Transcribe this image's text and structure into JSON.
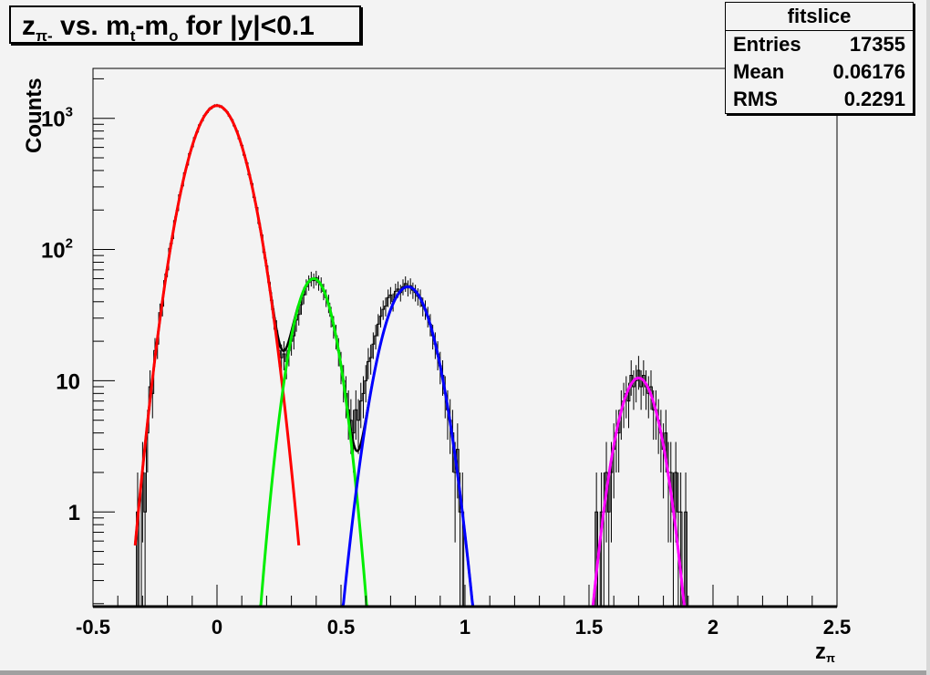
{
  "title": {
    "main": "z",
    "sub1": "π-",
    "mid": " vs. m",
    "sub2": "t",
    "mid2": "-m",
    "sub3": "o",
    "tail": " for |y|<0.1"
  },
  "stats": {
    "name": "fitslice",
    "rows": [
      {
        "label": "Entries",
        "value": "17355"
      },
      {
        "label": "Mean",
        "value": "0.06176"
      },
      {
        "label": "RMS",
        "value": "0.2291"
      }
    ]
  },
  "chart_data": {
    "type": "histogram",
    "ylabel": "Counts",
    "xlabel": "z",
    "xlabel_sub": "π",
    "xlim": [
      -0.5,
      2.5
    ],
    "ylim": [
      0.19,
      2400
    ],
    "y_scale": "log",
    "grid": false,
    "x_ticks": [
      "-0.5",
      "0",
      "0.5",
      "1",
      "1.5",
      "2",
      "2.5"
    ],
    "y_ticks": [
      {
        "value": 1,
        "label": "1"
      },
      {
        "value": 10,
        "label": "10"
      },
      {
        "value": 100,
        "label": "10",
        "exp": "2"
      },
      {
        "value": 1000,
        "label": "10",
        "exp": "3"
      }
    ],
    "bin_width": 0.01,
    "segments": [
      {
        "x_start": -0.32,
        "counts": [
          1,
          0,
          2,
          1,
          4,
          9,
          8,
          17,
          19,
          33,
          37,
          58,
          70,
          102,
          121,
          166,
          198,
          261,
          305,
          384,
          441,
          538,
          607,
          712,
          786,
          891,
          960,
          1053,
          1108,
          1181,
          1207,
          1246,
          1253,
          1236,
          1221,
          1166,
          1122,
          1040,
          975,
          876,
          801,
          698,
          622,
          524,
          457,
          371,
          318,
          249,
          209,
          158,
          129,
          95,
          75,
          56,
          41,
          30,
          24,
          17,
          15,
          16,
          14,
          17,
          20,
          22,
          29,
          32,
          38,
          45,
          52,
          56,
          60,
          58,
          61,
          56,
          54,
          48,
          43,
          39,
          31,
          26,
          22,
          17,
          13,
          10,
          8,
          6,
          5,
          4,
          6,
          5,
          7,
          8,
          10,
          14,
          15,
          19,
          22,
          27,
          31,
          35,
          37,
          43,
          45,
          40,
          48,
          50,
          47,
          52,
          55,
          51,
          53,
          49,
          47,
          44,
          43,
          37,
          35,
          31,
          27,
          22,
          19,
          16,
          13,
          11,
          8,
          6,
          5,
          4,
          2,
          3,
          1,
          1,
          0
        ]
      },
      {
        "x_start": 1.53,
        "counts": [
          1,
          0,
          1,
          1,
          2,
          1,
          2,
          3,
          4,
          4,
          6,
          7,
          8,
          7,
          11,
          9,
          10,
          12,
          9,
          11,
          9,
          8,
          9,
          6,
          6,
          5,
          4,
          3,
          4,
          2,
          2,
          1,
          2,
          1,
          1,
          0,
          1
        ]
      }
    ],
    "fits": [
      {
        "constant": 1250,
        "mean": 0.0,
        "sigma": 0.084,
        "range": [
          -0.33,
          0.33
        ],
        "color": "#ff0000"
      },
      {
        "constant": 60,
        "mean": 0.39,
        "sigma": 0.063,
        "range": [
          0.09,
          0.68
        ],
        "color": "#00ee00"
      },
      {
        "constant": 52,
        "mean": 0.77,
        "sigma": 0.078,
        "range": [
          0.45,
          1.08
        ],
        "color": "#0000ff"
      },
      {
        "constant": 10.5,
        "mean": 1.7,
        "sigma": 0.065,
        "range": [
          1.39,
          2.01
        ],
        "color": "#ff00ff"
      }
    ],
    "total_fit_color": "#000000"
  }
}
